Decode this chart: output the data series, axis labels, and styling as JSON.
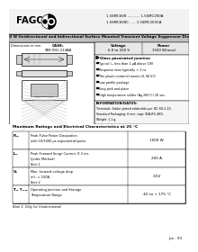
{
  "white": "#ffffff",
  "black": "#000000",
  "gray_header": "#c8c8c8",
  "gray_light": "#e8e8e8",
  "company": "FAGOR",
  "series_line1": "1.5SMC6V8 ........... 1.5SMC200A",
  "series_line2": "1.5SMC6V8C ..... 1.5SMC200CA",
  "main_title": "1500 W Unidirectional and bidirectional Surface Mounted Transient Voltage Suppressor Diodes",
  "dim_label": "Dimensions in mm.",
  "case_label": "CASE:",
  "case_value": "SMC/DO-214AB",
  "voltage_label": "Voltage",
  "voltage_value": "6.8 to 200 V",
  "power_label": "Power",
  "power_value": "1500 W(max)",
  "features_title": "Glass passivated junction",
  "features": [
    "Typical I₂ₜ less than 1 μA above 10V",
    "Response time typically < 1 ns",
    "The plastic material meets UL 94 V-0",
    "Low profile package",
    "Easy pick and place",
    "High temperature solder (Ag 260°C) 20 sec."
  ],
  "info_title": "INFORMATION/DATOS:",
  "info_lines": [
    "Terminals: Solder plated solderable per IEC 68-2-20.",
    "Standard Packaging: 8 mm. tape (EIA-RS-481).",
    "Weight: 1.1 g."
  ],
  "table_title": "Maximum Ratings and Electrical Characteristics at 25 °C",
  "table_rows": [
    {
      "symbol": "Pₚₕ",
      "desc1": "Peak Pulse Power Dissipation",
      "desc2": "with 10/1000 μs exponential pulse",
      "note": "",
      "value": "1500 W"
    },
    {
      "symbol": "Iₚₕ",
      "desc1": "Peak Forward Surge Current, 8.3 ms.",
      "desc2": "(Jedec Method)",
      "note": "Note 1",
      "value": "200 A"
    },
    {
      "symbol": "Vₑ",
      "desc1": "Max. forward voltage drop",
      "desc2": "mIₘ = 100A",
      "note": "Note 2",
      "value": "3.5V"
    },
    {
      "symbol": "Tⱼ, Tₜₜₘ",
      "desc1": "Operating Junction and Storage",
      "desc2": "Temperature Range",
      "note": "",
      "value": "-65 to + 175 °C"
    }
  ],
  "footnote": "Note 1: Only for Unidirectional",
  "page_note": "Jun - 93"
}
